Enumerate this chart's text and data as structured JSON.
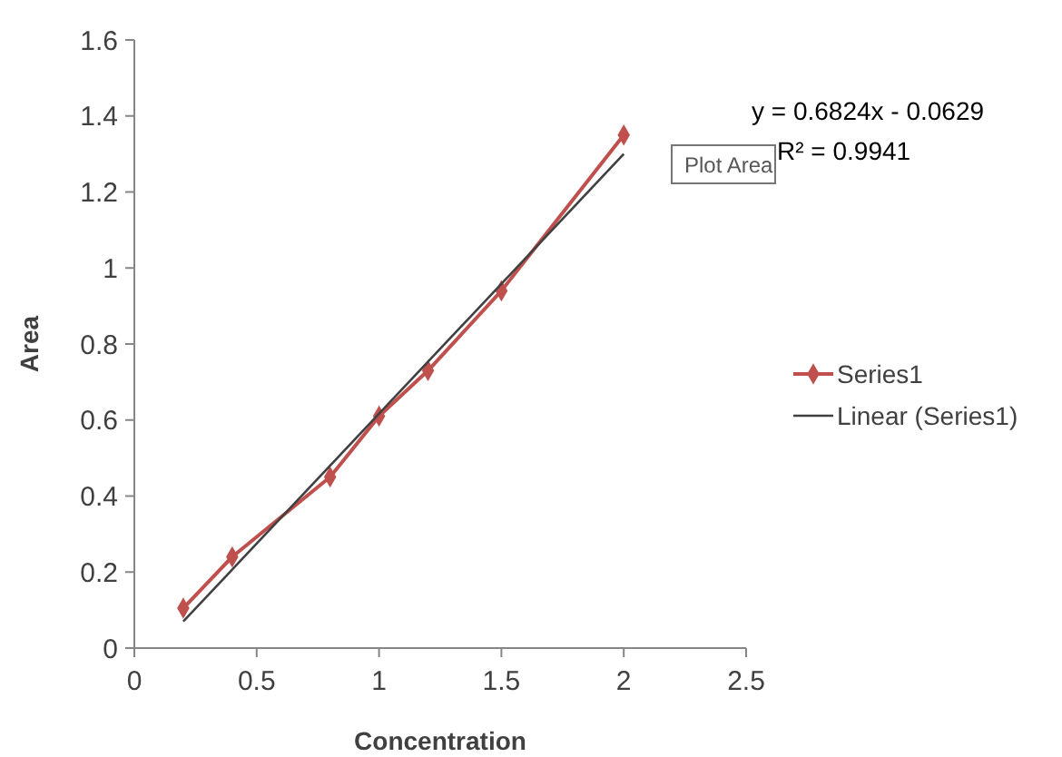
{
  "chart_data": {
    "type": "line",
    "xlabel": "Concentration",
    "ylabel": "Area",
    "xlim": [
      0,
      2.5
    ],
    "xticks": [
      0,
      0.5,
      1,
      1.5,
      2,
      2.5
    ],
    "ylim": [
      0,
      1.6
    ],
    "yticks": [
      0,
      0.2,
      0.4,
      0.6,
      0.8,
      1,
      1.2,
      1.4,
      1.6
    ],
    "grid": false,
    "legend": "right",
    "line_style": "solid",
    "series": [
      {
        "name": "Series1",
        "color": "#c0504d",
        "marker": "diamond",
        "x": [
          0.2,
          0.4,
          0.8,
          1.0,
          1.2,
          1.5,
          2.0
        ],
        "values": [
          0.105,
          0.24,
          0.45,
          0.61,
          0.73,
          0.94,
          1.35
        ]
      },
      {
        "name": "Linear (Series1)",
        "color": "#404040",
        "marker": "none",
        "x": [
          0.2,
          2.0
        ],
        "values": [
          0.07,
          1.3
        ]
      }
    ],
    "annotations": [
      "y = 0.6824x - 0.0629",
      "R² = 0.9941",
      "Plot Area"
    ]
  }
}
